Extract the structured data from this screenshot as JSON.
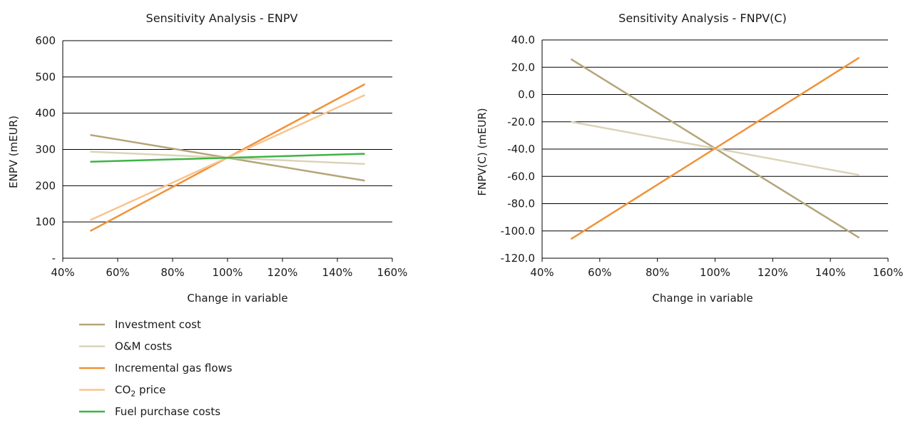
{
  "chart_data": [
    {
      "type": "line",
      "title": "Sensitivity Analysis - ENPV",
      "xlabel": "Change in variable",
      "ylabel": "ENPV (mEUR)",
      "xlim": [
        40,
        160
      ],
      "ylim": [
        0,
        600
      ],
      "xticks": [
        "40%",
        "60%",
        "80%",
        "100%",
        "120%",
        "140%",
        "160%"
      ],
      "yticks": [
        "-",
        "100",
        "200",
        "300",
        "400",
        "500",
        "600"
      ],
      "grid": true,
      "series": [
        {
          "name": "Investment cost",
          "color": "#b5a57a",
          "x": [
            50,
            150
          ],
          "y": [
            340,
            214
          ]
        },
        {
          "name": "O&M costs",
          "color": "#dcd3b8",
          "x": [
            50,
            150
          ],
          "y": [
            294,
            260
          ]
        },
        {
          "name": "Incremental gas flows",
          "color": "#f0923a",
          "x": [
            50,
            150
          ],
          "y": [
            75,
            480
          ]
        },
        {
          "name": "CO₂ price",
          "color": "#f9c48e",
          "x": [
            50,
            150
          ],
          "y": [
            105,
            450
          ]
        },
        {
          "name": "Fuel purchase costs",
          "color": "#3eb444",
          "x": [
            50,
            150
          ],
          "y": [
            266,
            288
          ]
        }
      ]
    },
    {
      "type": "line",
      "title": "Sensitivity Analysis - FNPV(C)",
      "xlabel": "Change in variable",
      "ylabel": "FNPV(C) (mEUR)",
      "xlim": [
        40,
        160
      ],
      "ylim": [
        -120,
        40
      ],
      "xticks": [
        "40%",
        "60%",
        "80%",
        "100%",
        "120%",
        "140%",
        "160%"
      ],
      "yticks": [
        "-120.0",
        "-100.0",
        "-80.0",
        "-60.0",
        "-40.0",
        "-20.0",
        "0.0",
        "20.0",
        "40.0"
      ],
      "grid": true,
      "series": [
        {
          "name": "Investment cost",
          "color": "#b5a57a",
          "x": [
            50,
            150
          ],
          "y": [
            26,
            -105
          ]
        },
        {
          "name": "O&M costs",
          "color": "#dcd3b8",
          "x": [
            50,
            150
          ],
          "y": [
            -20,
            -59
          ]
        },
        {
          "name": "Incremental gas flows",
          "color": "#f0923a",
          "x": [
            50,
            150
          ],
          "y": [
            -106,
            27
          ]
        }
      ]
    }
  ],
  "legend": [
    {
      "label": "Investment cost",
      "color": "#b5a57a"
    },
    {
      "label": "O&M costs",
      "color": "#dcd3b8"
    },
    {
      "label": "Incremental gas flows",
      "color": "#f0923a"
    },
    {
      "label": "CO₂ price",
      "color": "#f9c48e"
    },
    {
      "label": "Fuel purchase costs",
      "color": "#3eb444"
    }
  ]
}
